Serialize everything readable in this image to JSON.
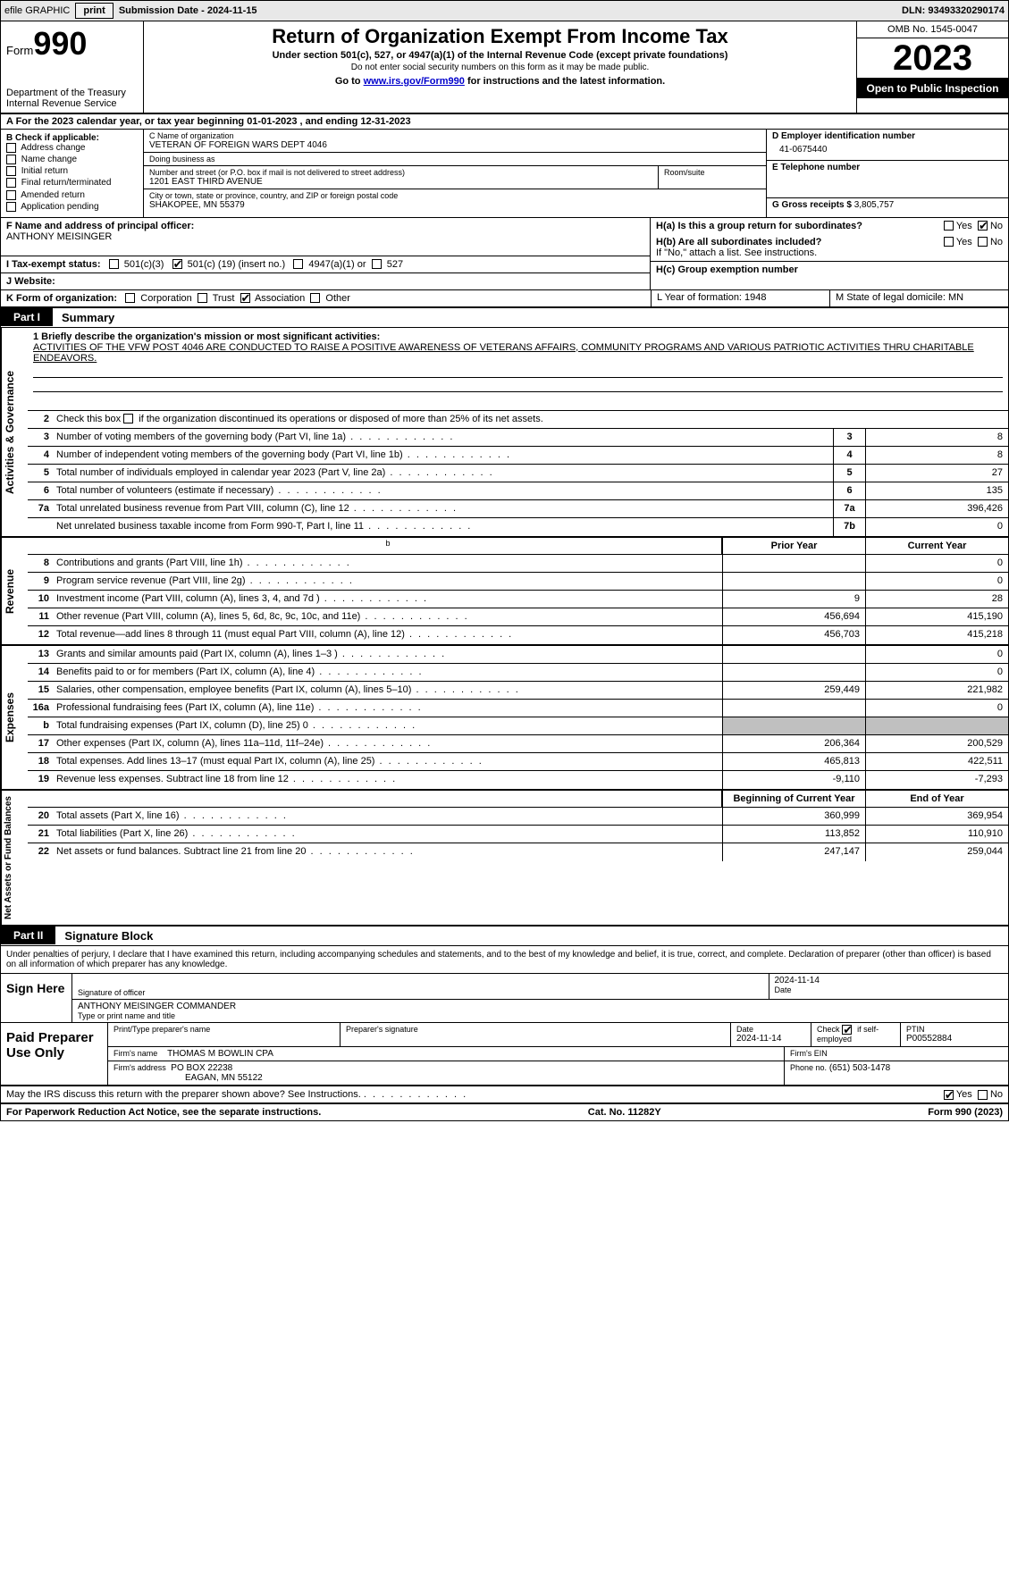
{
  "topbar": {
    "efile": "efile GRAPHIC",
    "print": "print",
    "submission": "Submission Date - 2024-11-15",
    "dln": "DLN: 93493320290174"
  },
  "header": {
    "form": "Form",
    "formnum": "990",
    "dept": "Department of the Treasury Internal Revenue Service",
    "title": "Return of Organization Exempt From Income Tax",
    "sub1": "Under section 501(c), 527, or 4947(a)(1) of the Internal Revenue Code (except private foundations)",
    "sub2": "Do not enter social security numbers on this form as it may be made public.",
    "sub3_pre": "Go to ",
    "sub3_link": "www.irs.gov/Form990",
    "sub3_post": " for instructions and the latest information.",
    "omb": "OMB No. 1545-0047",
    "year": "2023",
    "inspect": "Open to Public Inspection"
  },
  "rowA": "A For the 2023 calendar year, or tax year beginning 01-01-2023   , and ending 12-31-2023",
  "colB": {
    "title": "B Check if applicable:",
    "items": [
      "Address change",
      "Name change",
      "Initial return",
      "Final return/terminated",
      "Amended return",
      "Application pending"
    ]
  },
  "colC": {
    "name_label": "C Name of organization",
    "name": "VETERAN OF FOREIGN WARS DEPT 4046",
    "dba_label": "Doing business as",
    "dba": "",
    "street_label": "Number and street (or P.O. box if mail is not delivered to street address)",
    "street": "1201 EAST THIRD AVENUE",
    "suite_label": "Room/suite",
    "city_label": "City or town, state or province, country, and ZIP or foreign postal code",
    "city": "SHAKOPEE, MN  55379"
  },
  "colD": {
    "ein_label": "D Employer identification number",
    "ein": "41-0675440",
    "phone_label": "E Telephone number",
    "phone": "",
    "gross_label": "G Gross receipts $",
    "gross": "3,805,757"
  },
  "rowF": {
    "label": "F  Name and address of principal officer:",
    "name": "ANTHONY MEISINGER"
  },
  "rowH": {
    "ha": "H(a)  Is this a group return for subordinates?",
    "hb": "H(b)  Are all subordinates included?",
    "hb_note": "If \"No,\" attach a list. See instructions.",
    "hc": "H(c)  Group exemption number",
    "yes": "Yes",
    "no": "No"
  },
  "rowI": {
    "label": "I   Tax-exempt status:",
    "opt1": "501(c)(3)",
    "opt2_pre": "501(c) (",
    "opt2_num": "19",
    "opt2_post": ") (insert no.)",
    "opt3": "4947(a)(1) or",
    "opt4": "527"
  },
  "rowJ": {
    "label": "J   Website:",
    "val": ""
  },
  "rowK": {
    "label": "K Form of organization:",
    "opts": [
      "Corporation",
      "Trust",
      "Association",
      "Other"
    ],
    "checked_index": 2
  },
  "rowLM": {
    "l": "L Year of formation: 1948",
    "m": "M State of legal domicile: MN"
  },
  "partI": {
    "tab": "Part I",
    "title": "Summary"
  },
  "summary": {
    "side1": "Activities & Governance",
    "line1_label": "1  Briefly describe the organization's mission or most significant activities:",
    "line1_text": "ACTIVITIES OF THE VFW POST 4046 ARE CONDUCTED TO RAISE A POSITIVE AWARENESS OF VETERANS AFFAIRS, COMMUNITY PROGRAMS AND VARIOUS PATRIOTIC ACTIVITIES THRU CHARITABLE ENDEAVORS.",
    "line2": "Check this box       if the organization discontinued its operations or disposed of more than 25% of its net assets.",
    "rows_ag": [
      {
        "n": "3",
        "t": "Number of voting members of the governing body (Part VI, line 1a)",
        "box": "3",
        "v": "8"
      },
      {
        "n": "4",
        "t": "Number of independent voting members of the governing body (Part VI, line 1b)",
        "box": "4",
        "v": "8"
      },
      {
        "n": "5",
        "t": "Total number of individuals employed in calendar year 2023 (Part V, line 2a)",
        "box": "5",
        "v": "27"
      },
      {
        "n": "6",
        "t": "Total number of volunteers (estimate if necessary)",
        "box": "6",
        "v": "135"
      },
      {
        "n": "7a",
        "t": "Total unrelated business revenue from Part VIII, column (C), line 12",
        "box": "7a",
        "v": "396,426"
      },
      {
        "n": "",
        "t": "Net unrelated business taxable income from Form 990-T, Part I, line 11",
        "box": "7b",
        "v": "0"
      }
    ],
    "side2": "Revenue",
    "hdr_prior": "Prior Year",
    "hdr_current": "Current Year",
    "rows_rev": [
      {
        "n": "8",
        "t": "Contributions and grants (Part VIII, line 1h)",
        "p": "",
        "c": "0"
      },
      {
        "n": "9",
        "t": "Program service revenue (Part VIII, line 2g)",
        "p": "",
        "c": "0"
      },
      {
        "n": "10",
        "t": "Investment income (Part VIII, column (A), lines 3, 4, and 7d )",
        "p": "9",
        "c": "28"
      },
      {
        "n": "11",
        "t": "Other revenue (Part VIII, column (A), lines 5, 6d, 8c, 9c, 10c, and 11e)",
        "p": "456,694",
        "c": "415,190"
      },
      {
        "n": "12",
        "t": "Total revenue—add lines 8 through 11 (must equal Part VIII, column (A), line 12)",
        "p": "456,703",
        "c": "415,218"
      }
    ],
    "side3": "Expenses",
    "rows_exp": [
      {
        "n": "13",
        "t": "Grants and similar amounts paid (Part IX, column (A), lines 1–3 )",
        "p": "",
        "c": "0"
      },
      {
        "n": "14",
        "t": "Benefits paid to or for members (Part IX, column (A), line 4)",
        "p": "",
        "c": "0"
      },
      {
        "n": "15",
        "t": "Salaries, other compensation, employee benefits (Part IX, column (A), lines 5–10)",
        "p": "259,449",
        "c": "221,982"
      },
      {
        "n": "16a",
        "t": "Professional fundraising fees (Part IX, column (A), line 11e)",
        "p": "",
        "c": "0"
      },
      {
        "n": "b",
        "t": "Total fundraising expenses (Part IX, column (D), line 25) 0",
        "p": "shade",
        "c": "shade"
      },
      {
        "n": "17",
        "t": "Other expenses (Part IX, column (A), lines 11a–11d, 11f–24e)",
        "p": "206,364",
        "c": "200,529"
      },
      {
        "n": "18",
        "t": "Total expenses. Add lines 13–17 (must equal Part IX, column (A), line 25)",
        "p": "465,813",
        "c": "422,511"
      },
      {
        "n": "19",
        "t": "Revenue less expenses. Subtract line 18 from line 12",
        "p": "-9,110",
        "c": "-7,293"
      }
    ],
    "side4": "Net Assets or Fund Balances",
    "hdr_begin": "Beginning of Current Year",
    "hdr_end": "End of Year",
    "rows_na": [
      {
        "n": "20",
        "t": "Total assets (Part X, line 16)",
        "p": "360,999",
        "c": "369,954"
      },
      {
        "n": "21",
        "t": "Total liabilities (Part X, line 26)",
        "p": "113,852",
        "c": "110,910"
      },
      {
        "n": "22",
        "t": "Net assets or fund balances. Subtract line 21 from line 20",
        "p": "247,147",
        "c": "259,044"
      }
    ]
  },
  "partII": {
    "tab": "Part II",
    "title": "Signature Block"
  },
  "sig_intro": "Under penalties of perjury, I declare that I have examined this return, including accompanying schedules and statements, and to the best of my knowledge and belief, it is true, correct, and complete. Declaration of preparer (other than officer) is based on all information of which preparer has any knowledge.",
  "sign": {
    "left": "Sign Here",
    "sig_label": "Signature of officer",
    "name": "ANTHONY MEISINGER  COMMANDER",
    "name_label": "Type or print name and title",
    "date_label": "Date",
    "date": "2024-11-14"
  },
  "paid": {
    "left": "Paid Preparer Use Only",
    "prep_name_label": "Print/Type preparer's name",
    "prep_name": "",
    "sig_label": "Preparer's signature",
    "date_label": "Date",
    "date": "2024-11-14",
    "check_label": "Check",
    "check_text": "if self-employed",
    "ptin_label": "PTIN",
    "ptin": "P00552884",
    "firm_name_label": "Firm's name",
    "firm_name": "THOMAS M BOWLIN CPA",
    "firm_ein_label": "Firm's EIN",
    "firm_addr_label": "Firm's address",
    "firm_addr1": "PO BOX 22238",
    "firm_addr2": "EAGAN, MN  55122",
    "phone_label": "Phone no.",
    "phone": "(651) 503-1478"
  },
  "discuss": {
    "text": "May the IRS discuss this return with the preparer shown above? See Instructions.",
    "yes": "Yes",
    "no": "No"
  },
  "footer": {
    "left": "For Paperwork Reduction Act Notice, see the separate instructions.",
    "mid": "Cat. No. 11282Y",
    "right_pre": "Form ",
    "right_form": "990",
    "right_post": " (2023)"
  }
}
